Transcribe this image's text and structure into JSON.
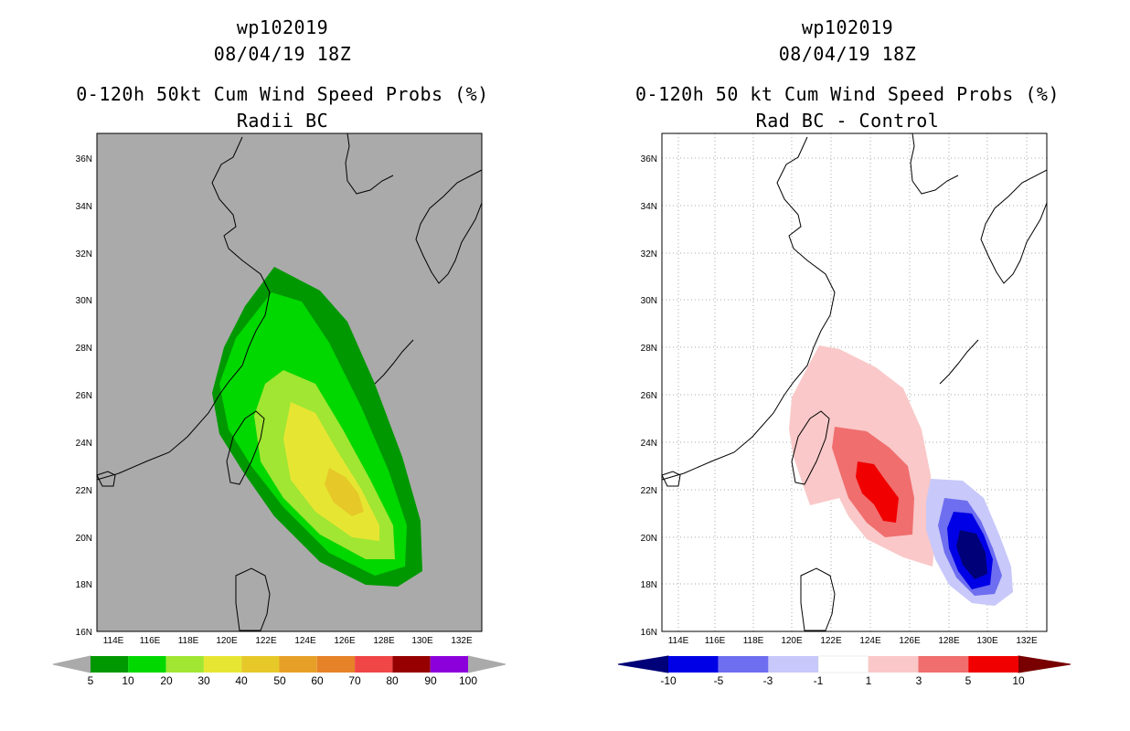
{
  "panels": [
    {
      "id": "left",
      "storm_id": "wp102019",
      "datetime": "08/04/19 18Z",
      "title": "0-120h 50kt Cum Wind Speed Probs (%)",
      "subtitle": "Radii BC",
      "background_color": "#aaaaaa",
      "lat_labels": [
        "36N",
        "34N",
        "32N",
        "30N",
        "28N",
        "26N",
        "24N",
        "22N",
        "20N",
        "18N",
        "16N"
      ],
      "lon_labels": [
        "114E",
        "116E",
        "118E",
        "120E",
        "122E",
        "124E",
        "126E",
        "128E",
        "130E",
        "132E"
      ],
      "colorbar": {
        "colors": [
          "#009800",
          "#00d800",
          "#a0e632",
          "#e6e632",
          "#e6c828",
          "#e6a028",
          "#e68228",
          "#f04646",
          "#960000",
          "#8c00dc"
        ],
        "labels": [
          "5",
          "10",
          "20",
          "30",
          "40",
          "50",
          "60",
          "70",
          "80",
          "90",
          "100"
        ],
        "end_arrow_color": "#aaaaaa"
      }
    },
    {
      "id": "right",
      "storm_id": "wp102019",
      "datetime": "08/04/19 18Z",
      "title": "0-120h 50 kt Cum Wind Speed Probs (%)",
      "subtitle": "Rad BC - Control",
      "background_color": "#ffffff",
      "lat_labels": [
        "36N",
        "34N",
        "32N",
        "30N",
        "28N",
        "26N",
        "24N",
        "22N",
        "20N",
        "18N",
        "16N"
      ],
      "lon_labels": [
        "114E",
        "116E",
        "118E",
        "120E",
        "122E",
        "124E",
        "126E",
        "128E",
        "130E",
        "132E"
      ],
      "colorbar": {
        "colors": [
          "#0000e6",
          "#6e6ef0",
          "#c8c8fa",
          "#ffffff",
          "#fac8c8",
          "#f06e6e",
          "#f00000"
        ],
        "labels": [
          "-10",
          "-5",
          "-3",
          "-1",
          "1",
          "3",
          "5",
          "10"
        ],
        "left_arrow_color": "#000078",
        "right_arrow_color": "#780000"
      }
    }
  ]
}
